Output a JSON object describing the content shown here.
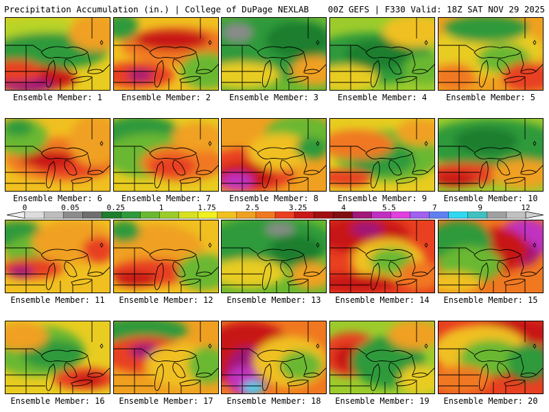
{
  "header": {
    "title": "Precipitation Accumulation (in.) | College of DuPage NEXLAB",
    "info": "00Z GEFS | F330 Valid: 18Z SAT NOV 29 2025"
  },
  "panels": [
    {
      "label": "Ensemble Member: 1",
      "base": "#e8cc20",
      "blobs": [
        [
          "#b8d428",
          0.3,
          0.28,
          0.55,
          0.3
        ],
        [
          "#2e9a3a",
          0.42,
          0.45,
          0.55,
          0.25
        ],
        [
          "#f0a020",
          0.85,
          0.2,
          0.25,
          0.25
        ],
        [
          "#c81818",
          0.22,
          0.82,
          0.45,
          0.18
        ],
        [
          "#a01878",
          0.22,
          0.92,
          0.25,
          0.1
        ],
        [
          "#e84020",
          0.1,
          0.72,
          0.25,
          0.15
        ]
      ]
    },
    {
      "label": "Ensemble Member: 2",
      "base": "#f0c020",
      "blobs": [
        [
          "#f07820",
          0.62,
          0.38,
          0.55,
          0.25
        ],
        [
          "#c81818",
          0.55,
          0.3,
          0.35,
          0.14
        ],
        [
          "#e84020",
          0.22,
          0.78,
          0.35,
          0.18
        ],
        [
          "#a01878",
          0.25,
          0.78,
          0.12,
          0.08
        ],
        [
          "#6ab830",
          0.88,
          0.72,
          0.25,
          0.25
        ],
        [
          "#2e9a3a",
          0.08,
          0.12,
          0.15,
          0.18
        ]
      ]
    },
    {
      "label": "Ensemble Member: 3",
      "base": "#6ab830",
      "blobs": [
        [
          "#2e9a3a",
          0.4,
          0.4,
          0.75,
          0.45
        ],
        [
          "#8a8a8a",
          0.15,
          0.2,
          0.14,
          0.12
        ],
        [
          "#1e7e2e",
          0.72,
          0.3,
          0.3,
          0.25
        ],
        [
          "#e8cc20",
          0.2,
          0.78,
          0.35,
          0.18
        ],
        [
          "#f0a020",
          0.88,
          0.72,
          0.22,
          0.2
        ]
      ]
    },
    {
      "label": "Ensemble Member: 4",
      "base": "#9ccc2c",
      "blobs": [
        [
          "#2e9a3a",
          0.38,
          0.55,
          0.6,
          0.35
        ],
        [
          "#1e7e2e",
          0.45,
          0.5,
          0.3,
          0.2
        ],
        [
          "#e8cc20",
          0.15,
          0.82,
          0.3,
          0.18
        ],
        [
          "#f0c020",
          0.8,
          0.18,
          0.3,
          0.22
        ],
        [
          "#6ab830",
          0.9,
          0.7,
          0.2,
          0.2
        ]
      ]
    },
    {
      "label": "Ensemble Member: 5",
      "base": "#f0a020",
      "blobs": [
        [
          "#e8cc20",
          0.45,
          0.45,
          0.55,
          0.35
        ],
        [
          "#2e9a3a",
          0.45,
          0.15,
          0.4,
          0.18
        ],
        [
          "#6ab830",
          0.62,
          0.55,
          0.25,
          0.2
        ],
        [
          "#e84020",
          0.85,
          0.8,
          0.25,
          0.2
        ],
        [
          "#f07820",
          0.15,
          0.8,
          0.2,
          0.18
        ]
      ]
    },
    {
      "label": "Ensemble Member: 6",
      "base": "#f0c020",
      "blobs": [
        [
          "#f07820",
          0.55,
          0.55,
          0.55,
          0.3
        ],
        [
          "#e84020",
          0.62,
          0.62,
          0.35,
          0.18
        ],
        [
          "#c81818",
          0.4,
          0.55,
          0.25,
          0.12
        ],
        [
          "#6ab830",
          0.15,
          0.25,
          0.25,
          0.25
        ],
        [
          "#2e9a3a",
          0.12,
          0.12,
          0.14,
          0.12
        ],
        [
          "#f0a020",
          0.85,
          0.3,
          0.25,
          0.35
        ]
      ]
    },
    {
      "label": "Ensemble Member: 7",
      "base": "#e8cc20",
      "blobs": [
        [
          "#2e9a3a",
          0.25,
          0.25,
          0.4,
          0.3
        ],
        [
          "#6ab830",
          0.35,
          0.5,
          0.45,
          0.3
        ],
        [
          "#f07820",
          0.65,
          0.6,
          0.4,
          0.25
        ],
        [
          "#e84020",
          0.55,
          0.65,
          0.22,
          0.15
        ],
        [
          "#f0a020",
          0.8,
          0.25,
          0.25,
          0.2
        ]
      ]
    },
    {
      "label": "Ensemble Member: 8",
      "base": "#f0a020",
      "blobs": [
        [
          "#e84020",
          0.25,
          0.7,
          0.45,
          0.3
        ],
        [
          "#c81818",
          0.22,
          0.78,
          0.28,
          0.18
        ],
        [
          "#c030c0",
          0.15,
          0.85,
          0.15,
          0.12
        ],
        [
          "#6ab830",
          0.75,
          0.25,
          0.35,
          0.3
        ],
        [
          "#f0c020",
          0.55,
          0.45,
          0.3,
          0.25
        ],
        [
          "#2e9a3a",
          0.85,
          0.4,
          0.15,
          0.15
        ]
      ]
    },
    {
      "label": "Ensemble Member: 9",
      "base": "#e8cc20",
      "blobs": [
        [
          "#6ab830",
          0.55,
          0.5,
          0.5,
          0.35
        ],
        [
          "#2e9a3a",
          0.5,
          0.55,
          0.3,
          0.22
        ],
        [
          "#f07820",
          0.25,
          0.35,
          0.35,
          0.2
        ],
        [
          "#e84020",
          0.15,
          0.8,
          0.25,
          0.12
        ],
        [
          "#f0a020",
          0.85,
          0.18,
          0.22,
          0.18
        ]
      ]
    },
    {
      "label": "Ensemble Member: 10",
      "base": "#9ccc2c",
      "blobs": [
        [
          "#2e9a3a",
          0.5,
          0.35,
          0.65,
          0.35
        ],
        [
          "#1e7e2e",
          0.45,
          0.3,
          0.3,
          0.18
        ],
        [
          "#e84020",
          0.25,
          0.75,
          0.4,
          0.15
        ],
        [
          "#c81818",
          0.15,
          0.82,
          0.2,
          0.1
        ],
        [
          "#f0a020",
          0.8,
          0.75,
          0.3,
          0.2
        ]
      ]
    },
    {
      "label": "Ensemble Member: 11",
      "base": "#f0c020",
      "blobs": [
        [
          "#2e9a3a",
          0.12,
          0.2,
          0.25,
          0.2
        ],
        [
          "#6ab830",
          0.3,
          0.45,
          0.3,
          0.25
        ],
        [
          "#e84020",
          0.25,
          0.65,
          0.3,
          0.14
        ],
        [
          "#a01878",
          0.15,
          0.7,
          0.12,
          0.08
        ],
        [
          "#f0a020",
          0.65,
          0.3,
          0.4,
          0.3
        ],
        [
          "#e84020",
          0.88,
          0.4,
          0.15,
          0.18
        ]
      ]
    },
    {
      "label": "Ensemble Member: 12",
      "base": "#f0c020",
      "blobs": [
        [
          "#f0a020",
          0.4,
          0.4,
          0.45,
          0.35
        ],
        [
          "#e84020",
          0.35,
          0.7,
          0.4,
          0.18
        ],
        [
          "#c81818",
          0.2,
          0.8,
          0.2,
          0.1
        ],
        [
          "#6ab830",
          0.85,
          0.7,
          0.25,
          0.25
        ],
        [
          "#2e9a3a",
          0.1,
          0.15,
          0.15,
          0.15
        ]
      ]
    },
    {
      "label": "Ensemble Member: 13",
      "base": "#6ab830",
      "blobs": [
        [
          "#2e9a3a",
          0.45,
          0.3,
          0.6,
          0.35
        ],
        [
          "#8a8a8a",
          0.55,
          0.12,
          0.14,
          0.08
        ],
        [
          "#1e7e2e",
          0.7,
          0.4,
          0.25,
          0.2
        ],
        [
          "#e8cc20",
          0.25,
          0.72,
          0.35,
          0.2
        ],
        [
          "#f0a020",
          0.85,
          0.75,
          0.2,
          0.18
        ]
      ]
    },
    {
      "label": "Ensemble Member: 14",
      "base": "#e84020",
      "blobs": [
        [
          "#c81818",
          0.3,
          0.2,
          0.45,
          0.25
        ],
        [
          "#a01878",
          0.35,
          0.12,
          0.15,
          0.1
        ],
        [
          "#f0c020",
          0.55,
          0.55,
          0.35,
          0.3
        ],
        [
          "#6ab830",
          0.58,
          0.55,
          0.2,
          0.18
        ],
        [
          "#c81818",
          0.25,
          0.85,
          0.4,
          0.12
        ],
        [
          "#f07820",
          0.85,
          0.75,
          0.2,
          0.2
        ]
      ]
    },
    {
      "label": "Ensemble Member: 15",
      "base": "#f07820",
      "blobs": [
        [
          "#c030c0",
          0.82,
          0.25,
          0.25,
          0.28
        ],
        [
          "#a01878",
          0.75,
          0.45,
          0.2,
          0.18
        ],
        [
          "#c81818",
          0.55,
          0.4,
          0.3,
          0.3
        ],
        [
          "#2e9a3a",
          0.2,
          0.3,
          0.3,
          0.3
        ],
        [
          "#6ab830",
          0.3,
          0.6,
          0.3,
          0.25
        ],
        [
          "#f0c020",
          0.15,
          0.85,
          0.25,
          0.15
        ]
      ]
    },
    {
      "label": "Ensemble Member: 16",
      "base": "#e8cc20",
      "blobs": [
        [
          "#6ab830",
          0.3,
          0.4,
          0.45,
          0.35
        ],
        [
          "#2e9a3a",
          0.45,
          0.45,
          0.3,
          0.2
        ],
        [
          "#e84020",
          0.75,
          0.78,
          0.3,
          0.15
        ],
        [
          "#c81818",
          0.78,
          0.8,
          0.15,
          0.08
        ],
        [
          "#f0a020",
          0.15,
          0.2,
          0.25,
          0.2
        ]
      ]
    },
    {
      "label": "Ensemble Member: 17",
      "base": "#f0a020",
      "blobs": [
        [
          "#2e9a3a",
          0.25,
          0.12,
          0.45,
          0.18
        ],
        [
          "#e84020",
          0.3,
          0.45,
          0.4,
          0.25
        ],
        [
          "#a01878",
          0.3,
          0.4,
          0.15,
          0.1
        ],
        [
          "#f0c020",
          0.65,
          0.6,
          0.35,
          0.3
        ],
        [
          "#6ab830",
          0.88,
          0.6,
          0.18,
          0.25
        ]
      ]
    },
    {
      "label": "Ensemble Member: 18",
      "base": "#f07820",
      "blobs": [
        [
          "#c81818",
          0.25,
          0.45,
          0.45,
          0.45
        ],
        [
          "#a01878",
          0.25,
          0.7,
          0.2,
          0.35
        ],
        [
          "#c030c0",
          0.2,
          0.8,
          0.14,
          0.2
        ],
        [
          "#30d8f0",
          0.3,
          0.9,
          0.1,
          0.08
        ],
        [
          "#f0c020",
          0.65,
          0.55,
          0.35,
          0.35
        ],
        [
          "#6ab830",
          0.75,
          0.6,
          0.2,
          0.2
        ]
      ]
    },
    {
      "label": "Ensemble Member: 19",
      "base": "#9ccc2c",
      "blobs": [
        [
          "#e84020",
          0.2,
          0.45,
          0.3,
          0.3
        ],
        [
          "#c81818",
          0.18,
          0.5,
          0.15,
          0.18
        ],
        [
          "#2e9a3a",
          0.55,
          0.55,
          0.35,
          0.35
        ],
        [
          "#f0a020",
          0.8,
          0.18,
          0.25,
          0.2
        ],
        [
          "#e8cc20",
          0.85,
          0.8,
          0.2,
          0.2
        ]
      ]
    },
    {
      "label": "Ensemble Member: 20",
      "base": "#e84020",
      "blobs": [
        [
          "#c81818",
          0.7,
          0.15,
          0.4,
          0.2
        ],
        [
          "#f0c020",
          0.4,
          0.4,
          0.45,
          0.35
        ],
        [
          "#6ab830",
          0.5,
          0.5,
          0.3,
          0.25
        ],
        [
          "#2e9a3a",
          0.85,
          0.55,
          0.2,
          0.25
        ],
        [
          "#f07820",
          0.2,
          0.8,
          0.3,
          0.2
        ]
      ]
    }
  ],
  "colorbar": {
    "tick_labels": [
      "0",
      "0.05",
      "0.25",
      "1",
      "1.75",
      "2.5",
      "3.25",
      "4",
      "5.5",
      "7",
      "9",
      "12"
    ],
    "colors": [
      "#dcdcdc",
      "#bdbdbd",
      "#8c8c8c",
      "#6e6e6e",
      "#1e7e2e",
      "#2e9a3a",
      "#6ab830",
      "#9ccc2c",
      "#d8e024",
      "#f0f020",
      "#f0c020",
      "#f0a020",
      "#f07820",
      "#e84020",
      "#c81818",
      "#a01010",
      "#801010",
      "#a01878",
      "#c030c0",
      "#e040e0",
      "#a060f0",
      "#6080f0",
      "#30d8f0",
      "#40c0c0",
      "#a0a0a0",
      "#c0c0c0"
    ]
  }
}
